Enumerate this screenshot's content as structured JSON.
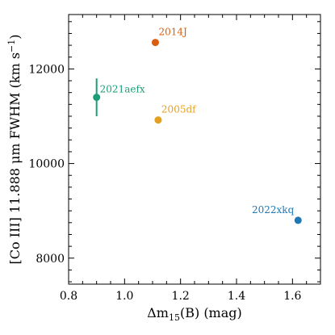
{
  "chart_data": {
    "type": "scatter",
    "xlabel": "Δm15(B) (mag)",
    "xlabel_parts": {
      "delta": "Δm",
      "sub": "15",
      "rest": "(B) (mag)"
    },
    "ylabel": "[Co III] 11.888 μm FWHM (km s⁻¹)",
    "ylabel_parts": {
      "main": "[Co III] 11.888 μm FWHM (km s",
      "sup": "−1",
      "close": ")"
    },
    "xlim": [
      0.8,
      1.7
    ],
    "ylim": [
      7450,
      13150
    ],
    "x_ticks": [
      0.8,
      1.0,
      1.2,
      1.4,
      1.6
    ],
    "x_tick_labels": [
      "0.8",
      "1.0",
      "1.2",
      "1.4",
      "1.6"
    ],
    "y_ticks": [
      8000,
      10000,
      12000
    ],
    "y_tick_labels": [
      "8000",
      "10000",
      "12000"
    ],
    "grid": false,
    "points": [
      {
        "label": "2014J",
        "x": 1.11,
        "y": 12560,
        "yerr": 0,
        "color": "#d95f0e",
        "label_pos": "above-right"
      },
      {
        "label": "2021aefx",
        "x": 0.9,
        "y": 11400,
        "yerr": 400,
        "color": "#1a9e77",
        "label_pos": "right"
      },
      {
        "label": "2005df",
        "x": 1.12,
        "y": 10920,
        "yerr": 0,
        "color": "#e6a020",
        "label_pos": "above-right"
      },
      {
        "label": "2022xkq",
        "x": 1.62,
        "y": 8800,
        "yerr": 0,
        "color": "#1f78b4",
        "label_pos": "above-left"
      }
    ]
  }
}
